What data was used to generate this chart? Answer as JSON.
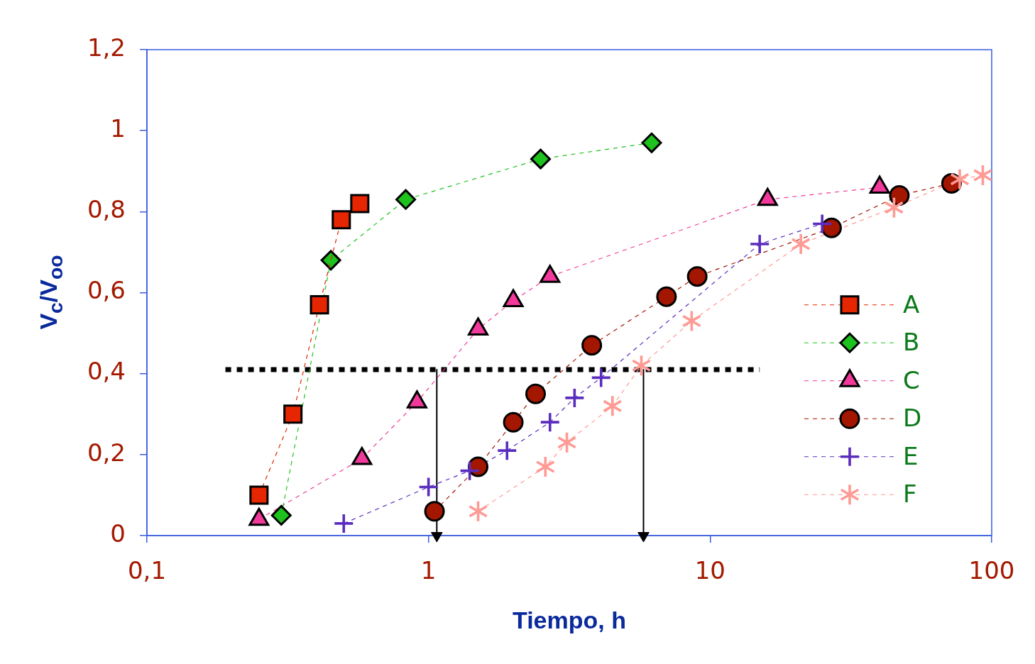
{
  "chart_data": {
    "type": "line",
    "xlabel": "Tiempo, h",
    "ylabel": "V$_{c}$/V$_{oo}$",
    "log": "x",
    "line_style": "dashed",
    "legend": "bottom right",
    "xlim": [
      0.1,
      100
    ],
    "xticks": [
      {
        "value": 0.1,
        "label": "0,1"
      },
      1,
      10,
      100
    ],
    "ylim": [
      0,
      1.2
    ],
    "yticks": [
      0,
      {
        "value": 0.2,
        "label": "0,2"
      },
      {
        "value": 0.4,
        "label": "0,4"
      },
      {
        "value": 0.6,
        "label": "0,6"
      },
      {
        "value": 0.8,
        "label": "0,8"
      },
      1,
      {
        "value": 1.2,
        "label": "1,2"
      }
    ],
    "series": [
      {
        "name": "A",
        "color": "#e52600",
        "marker": "square",
        "x": [
          0.25,
          0.33,
          0.41,
          0.49,
          0.57
        ],
        "values": [
          0.1,
          0.3,
          0.57,
          0.78,
          0.82
        ]
      },
      {
        "name": "B",
        "color": "#1ec21e",
        "marker": "diamond",
        "x": [
          0.3,
          0.45,
          0.83,
          2.5,
          6.2
        ],
        "values": [
          0.05,
          0.68,
          0.83,
          0.93,
          0.97
        ]
      },
      {
        "name": "C",
        "color": "#f2399b",
        "marker": "triangle",
        "x": [
          0.25,
          0.58,
          0.91,
          1.5,
          2.0,
          2.7,
          16,
          40
        ],
        "values": [
          0.04,
          0.19,
          0.33,
          0.51,
          0.58,
          0.64,
          0.83,
          0.86
        ]
      },
      {
        "name": "D",
        "color": "#a31600",
        "marker": "circle",
        "x": [
          1.05,
          1.5,
          2.0,
          2.4,
          3.8,
          7.0,
          9.0,
          27,
          47,
          72
        ],
        "values": [
          0.06,
          0.17,
          0.28,
          0.35,
          0.47,
          0.59,
          0.64,
          0.76,
          0.84,
          0.87
        ]
      },
      {
        "name": "E",
        "color": "#5b2dbe",
        "marker": "cross",
        "x": [
          0.5,
          1.0,
          1.4,
          1.9,
          2.7,
          3.3,
          4.1,
          15,
          25
        ],
        "values": [
          0.03,
          0.12,
          0.16,
          0.21,
          0.28,
          0.34,
          0.39,
          0.72,
          0.77
        ]
      },
      {
        "name": "F",
        "color": "#ff9a94",
        "marker": "star",
        "x": [
          1.5,
          2.6,
          3.1,
          4.5,
          5.7,
          8.6,
          21,
          45,
          77,
          93
        ],
        "values": [
          0.06,
          0.17,
          0.23,
          0.32,
          0.42,
          0.53,
          0.72,
          0.81,
          0.88,
          0.89
        ]
      },
      {
        "color": "#000000",
        "line_style": "dotted",
        "marker": "none",
        "x": [
          0.19,
          15
        ],
        "values": [
          0.41,
          0.41
        ]
      },
      {
        "color": "#000000",
        "line_style": "solid",
        "marker": "triangle",
        "x": [
          1.07,
          1.07
        ],
        "values": [
          0.41,
          0
        ]
      },
      {
        "color": "#000000",
        "line_style": "solid",
        "marker": "triangle",
        "x": [
          5.8,
          5.8
        ],
        "values": [
          0.41,
          0
        ]
      }
    ]
  }
}
